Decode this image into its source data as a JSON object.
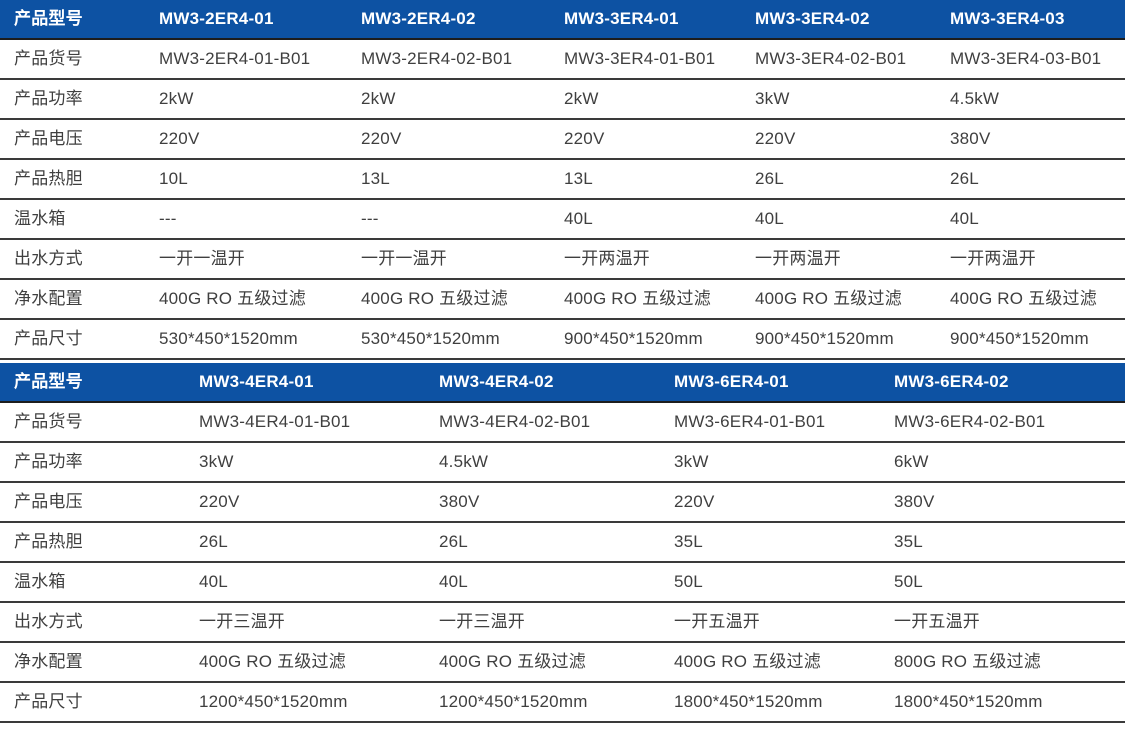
{
  "colors": {
    "header_bg": "#0d52a3",
    "header_text": "#ffffff",
    "body_text": "#3f3f3f",
    "row_border": "#3a3a3a"
  },
  "tables": [
    {
      "header_label": "产品型号",
      "models": [
        "MW3-2ER4-01",
        "MW3-2ER4-02",
        "MW3-3ER4-01",
        "MW3-3ER4-02",
        "MW3-3ER4-03"
      ],
      "rows": [
        {
          "label": "产品货号",
          "values": [
            "MW3-2ER4-01-B01",
            "MW3-2ER4-02-B01",
            "MW3-3ER4-01-B01",
            "MW3-3ER4-02-B01",
            "MW3-3ER4-03-B01"
          ]
        },
        {
          "label": "产品功率",
          "values": [
            "2kW",
            "2kW",
            "2kW",
            "3kW",
            "4.5kW"
          ]
        },
        {
          "label": "产品电压",
          "values": [
            "220V",
            "220V",
            "220V",
            "220V",
            "380V"
          ]
        },
        {
          "label": "产品热胆",
          "values": [
            "10L",
            "13L",
            "13L",
            "26L",
            "26L"
          ]
        },
        {
          "label": "温水箱",
          "values": [
            "---",
            "---",
            "40L",
            "40L",
            "40L"
          ]
        },
        {
          "label": "出水方式",
          "values": [
            "一开一温开",
            "一开一温开",
            "一开两温开",
            "一开两温开",
            "一开两温开"
          ]
        },
        {
          "label": "净水配置",
          "values": [
            "400G RO 五级过滤",
            "400G RO 五级过滤",
            "400G RO 五级过滤",
            "400G RO 五级过滤",
            "400G RO 五级过滤"
          ]
        },
        {
          "label": "产品尺寸",
          "values": [
            "530*450*1520mm",
            "530*450*1520mm",
            "900*450*1520mm",
            "900*450*1520mm",
            "900*450*1520mm"
          ]
        }
      ]
    },
    {
      "header_label": "产品型号",
      "models": [
        "MW3-4ER4-01",
        "MW3-4ER4-02",
        "MW3-6ER4-01",
        "MW3-6ER4-02"
      ],
      "rows": [
        {
          "label": "产品货号",
          "values": [
            "MW3-4ER4-01-B01",
            "MW3-4ER4-02-B01",
            "MW3-6ER4-01-B01",
            "MW3-6ER4-02-B01"
          ]
        },
        {
          "label": "产品功率",
          "values": [
            "3kW",
            "4.5kW",
            "3kW",
            "6kW"
          ]
        },
        {
          "label": "产品电压",
          "values": [
            "220V",
            "380V",
            "220V",
            "380V"
          ]
        },
        {
          "label": "产品热胆",
          "values": [
            "26L",
            "26L",
            "35L",
            "35L"
          ]
        },
        {
          "label": "温水箱",
          "values": [
            "40L",
            "40L",
            "50L",
            "50L"
          ]
        },
        {
          "label": "出水方式",
          "values": [
            "一开三温开",
            "一开三温开",
            "一开五温开",
            "一开五温开"
          ]
        },
        {
          "label": "净水配置",
          "values": [
            "400G RO 五级过滤",
            "400G RO 五级过滤",
            "400G RO 五级过滤",
            "800G RO 五级过滤"
          ]
        },
        {
          "label": "产品尺寸",
          "values": [
            "1200*450*1520mm",
            "1200*450*1520mm",
            "1800*450*1520mm",
            "1800*450*1520mm"
          ]
        }
      ]
    }
  ]
}
